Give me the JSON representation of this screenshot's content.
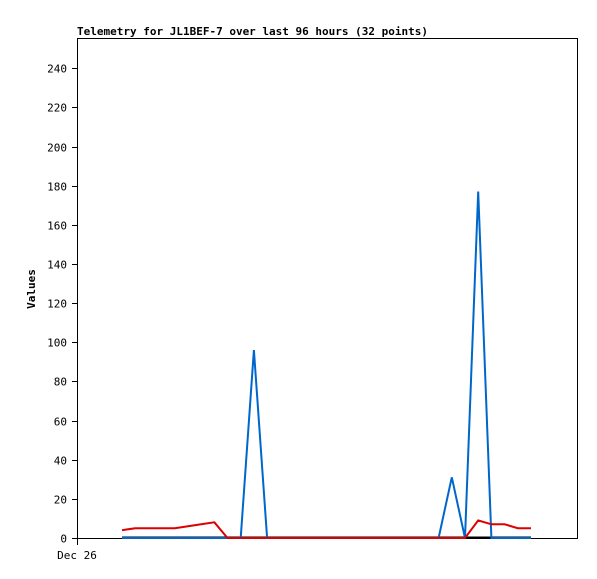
{
  "chart_data": {
    "type": "line",
    "title": "Telemetry for JL1BEF-7 over last 96 hours (32 points)",
    "xlabel": "",
    "ylabel": "Values",
    "x_tick_labels": [
      "Dec 26"
    ],
    "yticks": [
      0,
      20,
      40,
      60,
      80,
      100,
      120,
      140,
      160,
      180,
      200,
      220,
      240
    ],
    "ylim": [
      0,
      255
    ],
    "xlim": [
      0,
      31.5
    ],
    "grid": false,
    "legend": "none",
    "series": [
      {
        "color": "#0066cc",
        "x": [
          0,
          1,
          2,
          3,
          4,
          5,
          6,
          7,
          8,
          9,
          10,
          11,
          12,
          13,
          14,
          15,
          16,
          17,
          18,
          19,
          20,
          21,
          22,
          23,
          24,
          25,
          26,
          27,
          28,
          29,
          30,
          31
        ],
        "values": [
          0,
          0,
          0,
          0,
          0,
          0,
          0,
          0,
          0,
          0,
          96,
          0,
          0,
          0,
          0,
          0,
          0,
          0,
          0,
          0,
          0,
          0,
          0,
          0,
          0,
          31,
          0,
          177,
          0,
          0,
          0,
          0
        ]
      },
      {
        "color": "#dd0000",
        "x": [
          0,
          1,
          2,
          3,
          4,
          5,
          6,
          7,
          8,
          9,
          10,
          11,
          12,
          13,
          14,
          15,
          16,
          17,
          18,
          19,
          20,
          21,
          22,
          23,
          24,
          25,
          26,
          27,
          28,
          29,
          30,
          31
        ],
        "values": [
          4,
          5,
          5,
          5,
          5,
          6,
          7,
          8,
          0,
          0,
          0,
          0,
          0,
          0,
          0,
          0,
          0,
          0,
          0,
          0,
          0,
          0,
          0,
          0,
          0,
          0,
          0,
          9,
          7,
          7,
          5,
          5
        ]
      }
    ]
  }
}
